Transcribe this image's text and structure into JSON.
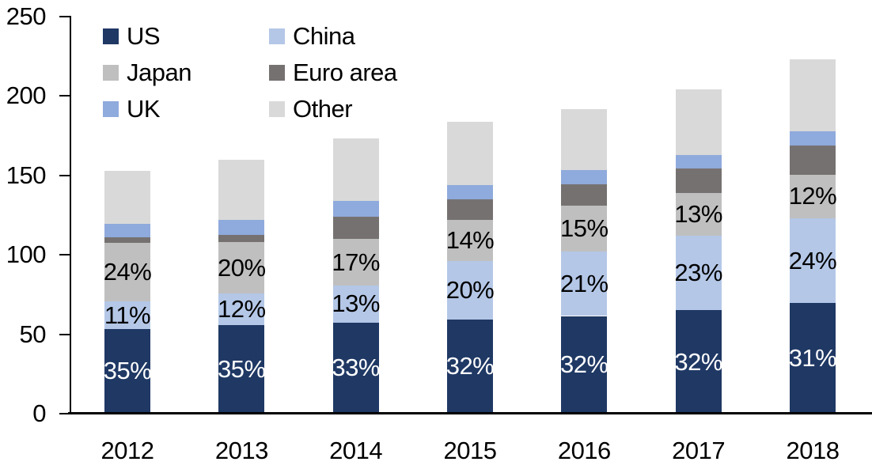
{
  "chart_data": {
    "type": "bar",
    "stacked": true,
    "title": "",
    "xlabel": "",
    "ylabel": "",
    "grid": false,
    "categories": [
      "2012",
      "2013",
      "2014",
      "2015",
      "2016",
      "2017",
      "2018"
    ],
    "totals": [
      153,
      160,
      173.5,
      184,
      191.5,
      204,
      223
    ],
    "y_axis": {
      "min": 0,
      "max": 250,
      "tick_step": 50,
      "ticks": [
        0,
        50,
        100,
        150,
        200,
        250
      ]
    },
    "legend": {
      "position": "top-left",
      "columns": [
        [
          "US",
          "Japan",
          "UK"
        ],
        [
          "China",
          "Euro area",
          "Other"
        ]
      ]
    },
    "series": [
      {
        "name": "US",
        "color": "#1F3864",
        "label_color": "#FFFFFF",
        "values": [
          53.5,
          56,
          57.5,
          59.5,
          61.5,
          65,
          69.5
        ],
        "labels": [
          "35%",
          "35%",
          "33%",
          "32%",
          "32%",
          "32%",
          "31%"
        ]
      },
      {
        "name": "China",
        "color": "#B4C7E7",
        "label_color": "#000000",
        "values": [
          17,
          19.5,
          23,
          36.5,
          40.5,
          47,
          53.5
        ],
        "labels": [
          "11%",
          "12%",
          "13%",
          "20%",
          "21%",
          "23%",
          "24%"
        ]
      },
      {
        "name": "Japan",
        "color": "#BFBFBF",
        "label_color": "#000000",
        "values": [
          37,
          32.5,
          29.5,
          26,
          29,
          27,
          27.5
        ],
        "labels": [
          "24%",
          "20%",
          "17%",
          "14%",
          "15%",
          "13%",
          "12%"
        ]
      },
      {
        "name": "Euro area",
        "color": "#767171",
        "label_color": null,
        "values": [
          3.5,
          4.5,
          14,
          13,
          13.5,
          15.5,
          18.5
        ],
        "labels": [
          null,
          null,
          null,
          null,
          null,
          null,
          null
        ]
      },
      {
        "name": "UK",
        "color": "#8FAADC",
        "label_color": null,
        "values": [
          8.5,
          9.5,
          10,
          9,
          9,
          8.5,
          9
        ],
        "labels": [
          null,
          null,
          null,
          null,
          null,
          null,
          null
        ]
      },
      {
        "name": "Other",
        "color": "#D9D9D9",
        "label_color": null,
        "values": [
          33.5,
          38,
          39.5,
          40,
          38,
          41,
          45
        ],
        "labels": [
          null,
          null,
          null,
          null,
          null,
          null,
          null
        ]
      }
    ]
  }
}
